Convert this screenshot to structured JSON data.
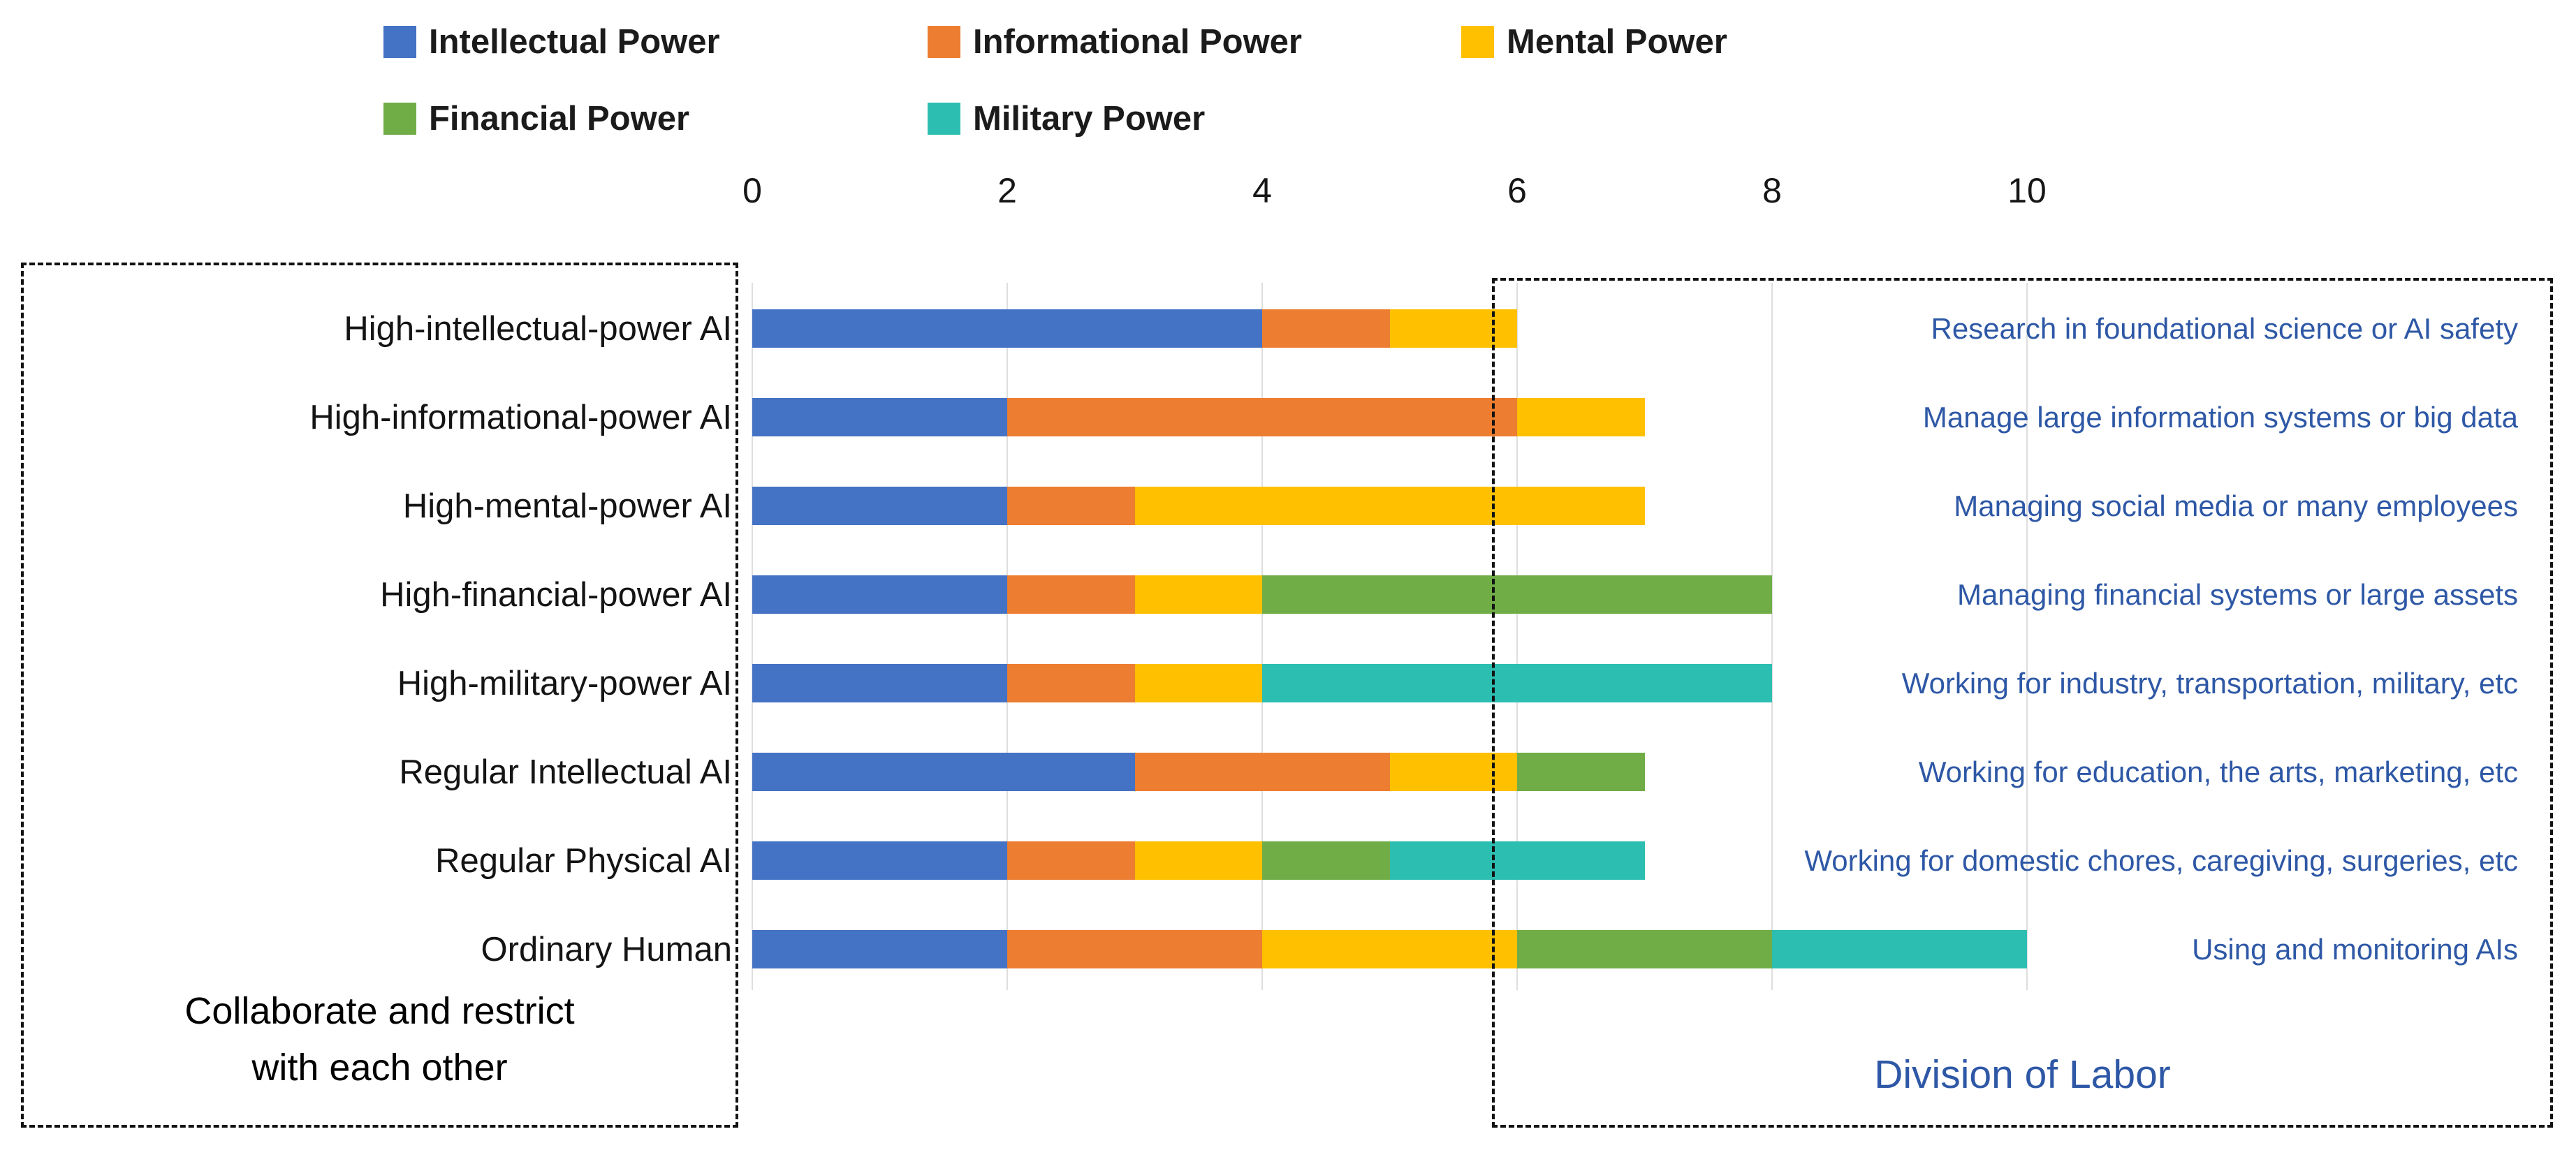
{
  "chart_data": {
    "type": "bar",
    "orientation": "horizontal",
    "stacked": true,
    "title": "",
    "categories": [
      "High-intellectual-power AI",
      "High-informational-power AI",
      "High-mental-power AI",
      "High-financial-power AI",
      "High-military-power AI",
      "Regular Intellectual AI",
      "Regular Physical AI",
      "Ordinary Human"
    ],
    "series": [
      {
        "name": "Intellectual Power",
        "color": "#4472C4",
        "values": [
          4,
          2,
          2,
          2,
          2,
          3,
          2,
          2
        ]
      },
      {
        "name": "Informational Power",
        "color": "#ED7D31",
        "values": [
          1,
          4,
          1,
          1,
          1,
          2,
          1,
          2
        ]
      },
      {
        "name": "Mental Power",
        "color": "#FFC000",
        "values": [
          1,
          1,
          4,
          1,
          1,
          1,
          1,
          2
        ]
      },
      {
        "name": "Financial Power",
        "color": "#70AD47",
        "values": [
          0,
          0,
          0,
          4,
          0,
          1,
          1,
          2
        ]
      },
      {
        "name": "Military Power",
        "color": "#2DBEB2",
        "values": [
          0,
          0,
          0,
          0,
          4,
          0,
          2,
          2
        ]
      }
    ],
    "x_ticks": [
      "0",
      "2",
      "4",
      "6",
      "8",
      "10"
    ],
    "xlim": [
      0,
      10
    ],
    "grid": true,
    "legend_position": "top",
    "annotations": [
      "Research in foundational science or AI safety",
      "Manage large information systems or big data",
      "Managing social media or many employees",
      "Managing financial systems or large assets",
      "Working for industry, transportation, military, etc",
      "Working for education, the arts, marketing, etc",
      "Working for domestic chores, caregiving, surgeries, etc",
      "Using and monitoring AIs"
    ],
    "annotation_color": "#2E58A6",
    "left_box_label_lines": [
      "Collaborate and restrict",
      "with each other"
    ],
    "right_box_label": "Division of Labor"
  }
}
